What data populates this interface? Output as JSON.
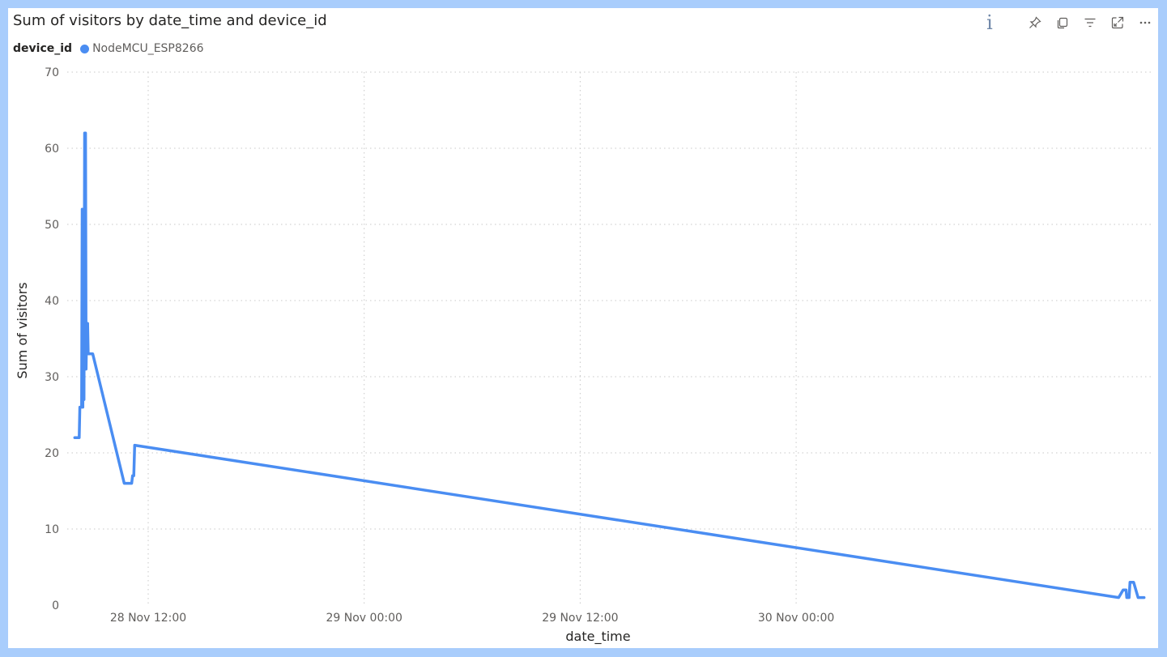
{
  "chart_data": {
    "type": "line",
    "title": "Sum of visitors by date_time and device_id",
    "xlabel": "date_time",
    "ylabel": "Sum of visitors",
    "legend": {
      "title": "device_id",
      "placement": "top-left"
    },
    "ylim": [
      0,
      70
    ],
    "y_ticks": [
      0,
      10,
      20,
      30,
      40,
      50,
      60,
      70
    ],
    "xlim": [
      "2021-11-28T07:30",
      "2021-11-30T19:45"
    ],
    "x_ticks": [
      {
        "t": "2021-11-28T12:00",
        "label": "28 Nov 12:00"
      },
      {
        "t": "2021-11-29T00:00",
        "label": "29 Nov 00:00"
      },
      {
        "t": "2021-11-29T12:00",
        "label": "29 Nov 12:00"
      },
      {
        "t": "2021-11-30T00:00",
        "label": "30 Nov 00:00"
      }
    ],
    "grid": true,
    "series": [
      {
        "name": "NodeMCU_ESP8266",
        "color": "#4a8df2",
        "points": [
          [
            "2021-11-28T07:55",
            22
          ],
          [
            "2021-11-28T08:10",
            22
          ],
          [
            "2021-11-28T08:12",
            26
          ],
          [
            "2021-11-28T08:18",
            26
          ],
          [
            "2021-11-28T08:20",
            52
          ],
          [
            "2021-11-28T08:22",
            26
          ],
          [
            "2021-11-28T08:24",
            52
          ],
          [
            "2021-11-28T08:26",
            27
          ],
          [
            "2021-11-28T08:28",
            62
          ],
          [
            "2021-11-28T08:31",
            62
          ],
          [
            "2021-11-28T08:33",
            31
          ],
          [
            "2021-11-28T08:35",
            37
          ],
          [
            "2021-11-28T08:38",
            37
          ],
          [
            "2021-11-28T08:40",
            33
          ],
          [
            "2021-11-28T08:55",
            33
          ],
          [
            "2021-11-28T10:40",
            16
          ],
          [
            "2021-11-28T11:05",
            16
          ],
          [
            "2021-11-28T11:08",
            17
          ],
          [
            "2021-11-28T11:12",
            17
          ],
          [
            "2021-11-28T11:15",
            21
          ],
          [
            "2021-11-30T17:55",
            1
          ],
          [
            "2021-11-30T18:10",
            2
          ],
          [
            "2021-11-30T18:20",
            2
          ],
          [
            "2021-11-30T18:22",
            1
          ],
          [
            "2021-11-30T18:30",
            1
          ],
          [
            "2021-11-30T18:33",
            3
          ],
          [
            "2021-11-30T18:45",
            3
          ],
          [
            "2021-11-30T19:00",
            1
          ],
          [
            "2021-11-30T19:20",
            1
          ]
        ]
      }
    ]
  },
  "toolbar": {
    "icons": [
      "info-icon",
      "pin-icon",
      "copy-icon",
      "filter-icon",
      "focus-mode-icon",
      "more-options-icon"
    ]
  }
}
